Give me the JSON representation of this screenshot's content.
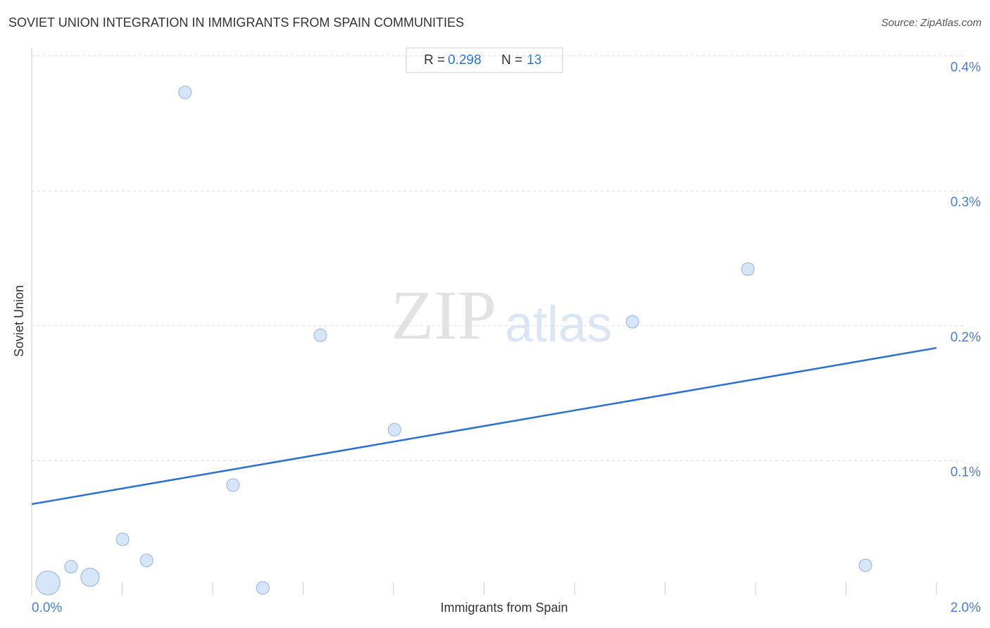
{
  "chart_data": {
    "type": "scatter",
    "title": "SOVIET UNION INTEGRATION IN IMMIGRANTS FROM SPAIN COMMUNITIES",
    "source": "Source: ZipAtlas.com",
    "x_label": "Immigrants from Spain",
    "y_label": "Soviet Union",
    "watermark": [
      "ZIP",
      "atlas"
    ],
    "stats": {
      "r_label": "R =",
      "r": 0.298,
      "n_label": "N =",
      "n": 13
    },
    "x": [
      0.036,
      0.087,
      0.129,
      0.201,
      0.254,
      0.339,
      0.445,
      0.511,
      0.638,
      0.802,
      1.328,
      1.583,
      1.843
    ],
    "values": [
      0.0094,
      0.0214,
      0.0136,
      0.0417,
      0.0261,
      0.373,
      0.0819,
      0.0057,
      0.193,
      0.123,
      0.203,
      0.242,
      0.0224
    ],
    "sizes": [
      17,
      9,
      13,
      9,
      9,
      9,
      9,
      9,
      9,
      9,
      9,
      9,
      9
    ],
    "color": "#cfe0f6",
    "edge_color": "#8fb3e3",
    "trendline": {
      "x": [
        0,
        2
      ],
      "y": [
        0.0678,
        0.1836
      ],
      "color": "#2a6fd1"
    },
    "xlim": [
      0,
      2
    ],
    "ylim": [
      0,
      0.406
    ],
    "xticks": [
      {
        "value": 0,
        "label": "0.0%"
      },
      {
        "value": 2,
        "label": "2.0%"
      }
    ],
    "x_tick_marks": [
      0.2,
      0.4,
      0.6,
      0.8,
      1.0,
      1.2,
      1.4,
      1.6,
      1.8,
      2.0
    ],
    "yticks": [
      {
        "value": 0.1,
        "label": "0.1%"
      },
      {
        "value": 0.2,
        "label": "0.2%"
      },
      {
        "value": 0.3,
        "label": "0.3%"
      },
      {
        "value": 0.4,
        "label": "0.4%"
      }
    ],
    "grid": true
  }
}
